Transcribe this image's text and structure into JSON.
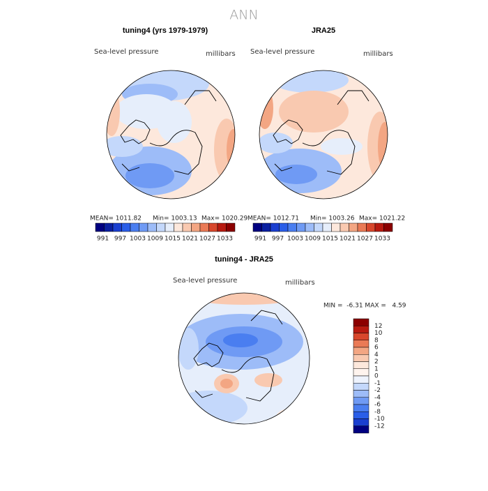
{
  "title": "ANN",
  "panels": [
    {
      "title": "tuning4 (yrs 1979-1979)",
      "variable": "Sea-level pressure",
      "units": "millibars",
      "stats": [
        "MEAN= 1011.82",
        "Min= 1003.13",
        "Max= 1020.29"
      ]
    },
    {
      "title": "JRA25",
      "variable": "Sea-level pressure",
      "units": "millibars",
      "stats": [
        "MEAN= 1012.71",
        "Min= 1003.26",
        "Max= 1021.22"
      ]
    }
  ],
  "colorbar": {
    "labels": [
      "991",
      "997",
      "1003",
      "1009",
      "1015",
      "1021",
      "1027",
      "1033"
    ],
    "colors": [
      "#000080",
      "#0a1fa0",
      "#1a3fd0",
      "#2a5ee8",
      "#4a7ef0",
      "#6f9af4",
      "#9dbcf8",
      "#c4d8fb",
      "#e6eefb",
      "#fde8dc",
      "#f9c9b0",
      "#f3a683",
      "#ea7a56",
      "#d8472c",
      "#b81a10",
      "#8b0000"
    ]
  },
  "difference": {
    "title": "tuning4 - JRA25",
    "variable": "Sea-level pressure",
    "units": "millibars",
    "stats": "MIN =  -6.31 MAX =   4.59",
    "colorbar": {
      "labels": [
        "12",
        "10",
        "8",
        "6",
        "4",
        "2",
        "1",
        "0",
        "-1",
        "-2",
        "-4",
        "-6",
        "-8",
        "-10",
        "-12"
      ],
      "colors": [
        "#8b0000",
        "#b81a10",
        "#d8472c",
        "#ea7a56",
        "#f3a683",
        "#f9c9b0",
        "#fde8dc",
        "#fff4ee",
        "#eef3fd",
        "#c4d8fb",
        "#9dbcf8",
        "#6f9af4",
        "#4a7ef0",
        "#2a5ee8",
        "#1a3fd0",
        "#000080"
      ]
    }
  }
}
